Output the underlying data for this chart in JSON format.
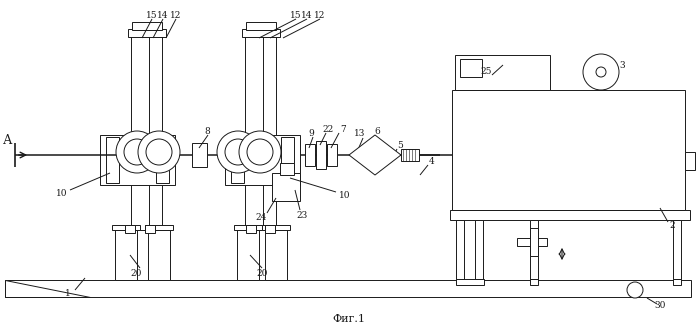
{
  "bg_color": "#ffffff",
  "lc": "#1a1a1a",
  "caption": "Фиг.1",
  "figsize": [
    6.99,
    3.29
  ],
  "dpi": 100
}
